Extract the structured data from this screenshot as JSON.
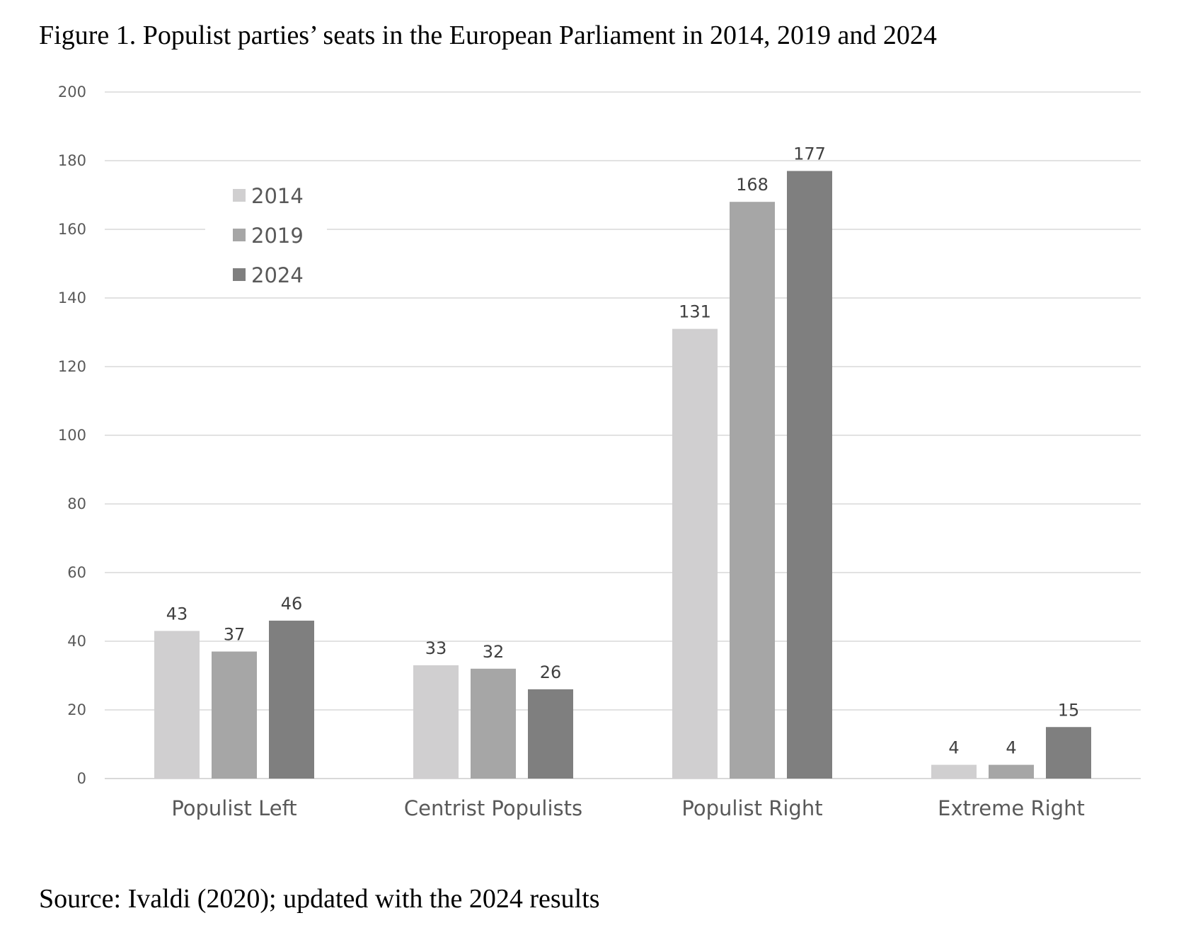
{
  "figure": {
    "title": "Figure 1. Populist parties’ seats in the European Parliament in 2014, 2019 and 2024",
    "source": "Source: Ivaldi (2020); updated with the 2024 results"
  },
  "chart_data": {
    "type": "bar",
    "title": "",
    "xlabel": "",
    "ylabel": "",
    "categories": [
      "Populist Left",
      "Centrist Populists",
      "Populist Right",
      "Extreme Right"
    ],
    "series": [
      {
        "name": "2014",
        "color": "#d0cfd0",
        "values": [
          43,
          33,
          131,
          4
        ]
      },
      {
        "name": "2019",
        "color": "#a6a6a6",
        "values": [
          37,
          32,
          168,
          4
        ]
      },
      {
        "name": "2024",
        "color": "#7f7f7f",
        "values": [
          46,
          26,
          177,
          15
        ]
      }
    ],
    "ylim": [
      0,
      200
    ],
    "yticks": [
      "0",
      "20",
      "40",
      "60",
      "80",
      "100",
      "120",
      "140",
      "160",
      "180",
      "200"
    ],
    "grid": true,
    "gridline_color": "#d9d9d9",
    "legend_position": "top-left",
    "data_labels": true
  }
}
